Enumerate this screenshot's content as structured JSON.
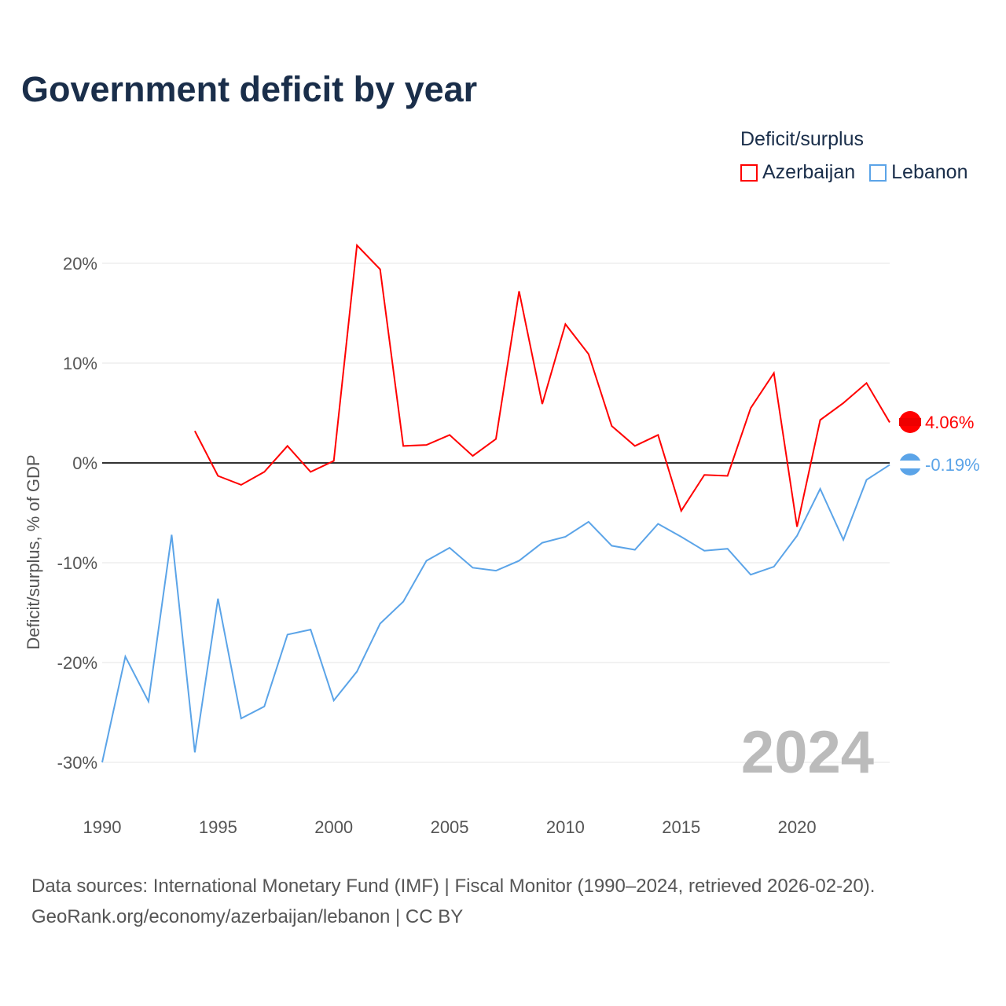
{
  "title": "Government deficit by year",
  "legend": {
    "title": "Deficit/surplus",
    "items": [
      "Azerbaijan",
      "Lebanon"
    ]
  },
  "footer": {
    "line1": "Data sources: International Monetary Fund (IMF) | Fiscal Monitor (1990–2024, retrieved 2026-02-20).",
    "line2": "GeoRank.org/economy/azerbaijan/lebanon | CC BY"
  },
  "chart_data": {
    "type": "line",
    "title": "Government deficit by year",
    "xlabel": "",
    "ylabel": "Deficit/surplus, % of GDP",
    "xlim": [
      1990,
      2024
    ],
    "ylim": [
      -30,
      20
    ],
    "xticks": [
      "1990",
      "1995",
      "2000",
      "2005",
      "2010",
      "2015",
      "2020"
    ],
    "yticks": [
      "20%",
      "10%",
      "0%",
      "-10%",
      "-20%",
      "-30%"
    ],
    "year_watermark": "2024",
    "series": [
      {
        "name": "Azerbaijan",
        "color": "#ff0000",
        "end_label": "4.06%",
        "x_start": 1994,
        "values": [
          3.2,
          -1.3,
          -2.2,
          -0.9,
          1.7,
          -0.9,
          0.2,
          21.8,
          19.4,
          1.7,
          1.8,
          2.8,
          0.7,
          2.4,
          17.2,
          5.9,
          13.9,
          10.9,
          3.7,
          1.7,
          2.8,
          -4.8,
          -1.2,
          -1.3,
          5.5,
          9.0,
          -6.4,
          4.3,
          6.0,
          8.0,
          4.06
        ]
      },
      {
        "name": "Lebanon",
        "color": "#5ba4e8",
        "end_label": "-0.19%",
        "x_start": 1990,
        "values": [
          -30.0,
          -19.4,
          -23.9,
          -7.2,
          -29.0,
          -13.6,
          -25.6,
          -24.4,
          -17.2,
          -16.7,
          -23.8,
          -20.9,
          -16.1,
          -13.9,
          -9.8,
          -8.5,
          -10.5,
          -10.8,
          -9.8,
          -8.0,
          -7.4,
          -5.9,
          -8.3,
          -8.7,
          -6.1,
          -7.4,
          -8.8,
          -8.6,
          -11.2,
          -10.4,
          -7.3,
          -2.6,
          -7.7,
          -1.7,
          -0.19
        ]
      }
    ]
  }
}
